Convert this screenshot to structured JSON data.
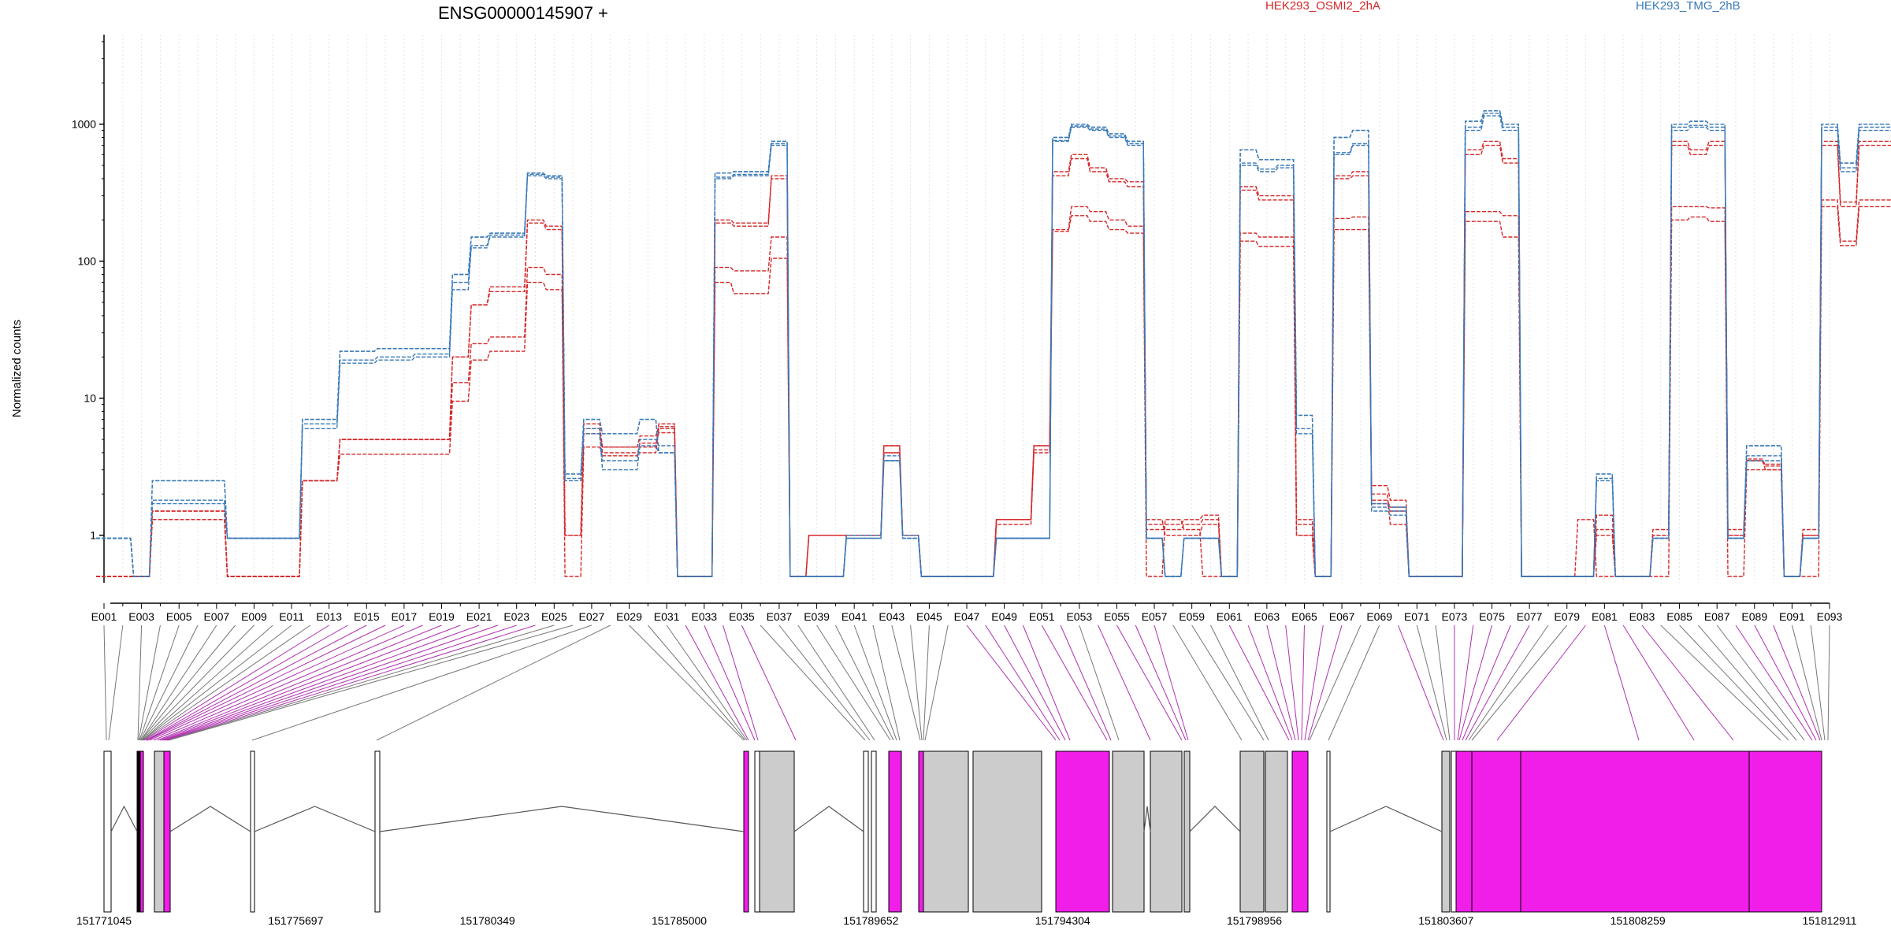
{
  "chart_data": {
    "type": "line",
    "title": "ENSG00000145907 +",
    "ylabel": "Normalized counts",
    "yscale": "log",
    "ylim": [
      0.45,
      4500
    ],
    "yticks": [
      1,
      10,
      100,
      1000
    ],
    "ytick_labels": [
      "1",
      "10",
      "100",
      "1000"
    ],
    "grid": "vertical dotted lines at each exon bin",
    "legend_position": "top",
    "colors": {
      "HEK293_OSMI2_2hA": "#d62728",
      "HEK293_TMG_2hB": "#3a7ab8",
      "intron_line": "#555555",
      "exon_gray": "#cccccc",
      "exon_magenta": "#f01ee8"
    },
    "exon_labels_shown": [
      "E001",
      "E003",
      "E005",
      "E007",
      "E009",
      "E011",
      "E013",
      "E015",
      "E017",
      "E019",
      "E021",
      "E023",
      "E025",
      "E027",
      "E029",
      "E031",
      "E033",
      "E035",
      "E037",
      "E039",
      "E041",
      "E043",
      "E045",
      "E047",
      "E049",
      "E051",
      "E053",
      "E055",
      "E057",
      "E059",
      "E061",
      "E063",
      "E065",
      "E067",
      "E069",
      "E071",
      "E073",
      "E075",
      "E077",
      "E079",
      "E081",
      "E083",
      "E085",
      "E087",
      "E089",
      "E091",
      "E093"
    ],
    "genomic_axis_labels": [
      "151771045",
      "151775697",
      "151780349",
      "151785000",
      "151789652",
      "151794304",
      "151798956",
      "151803607",
      "151808259",
      "151812911"
    ],
    "genomic_range": [
      151771045,
      151812911
    ],
    "series": [
      {
        "name": "HEK293_OSMI2_2hA",
        "group": "HEK293_OSMI2_2hA",
        "values": [
          0.5,
          0.5,
          0.5,
          1.3,
          1.3,
          1.3,
          1.3,
          0.5,
          0.5,
          0.5,
          0.5,
          2.5,
          2.5,
          3.9,
          3.9,
          3.9,
          3.9,
          3.9,
          3.9,
          9.5,
          19,
          22,
          22,
          70,
          62,
          0.5,
          4.4,
          3.8,
          3.8,
          4.7,
          5.6,
          0.5,
          0.5,
          70,
          58,
          58,
          105,
          0.5,
          0.5,
          0.5,
          1.0,
          1.0,
          4.0,
          1.0,
          0.5,
          0.5,
          0.5,
          0.5,
          1.3,
          1.3,
          4.2,
          165,
          215,
          195,
          170,
          160,
          0.5,
          1.3,
          1.1,
          0.5,
          0.5,
          140,
          128,
          128,
          1.0,
          0.5,
          170,
          170,
          2.0,
          1.2,
          0.5,
          0.5,
          0.5,
          195,
          195,
          150,
          0.5,
          0.5,
          0.5,
          1.3,
          0.5,
          0.5,
          0.5,
          0.5,
          200,
          210,
          195,
          0.5,
          3.0,
          3.0,
          0.5,
          0.5,
          250,
          130,
          250,
          250,
          165,
          0.5
        ]
      },
      {
        "name": "HEK293_OSMI2_2hA",
        "group": "HEK293_OSMI2_2hA",
        "values": [
          0.5,
          0.5,
          0.5,
          1.5,
          1.5,
          1.5,
          1.5,
          0.5,
          0.5,
          0.5,
          0.5,
          2.5,
          2.5,
          5,
          5,
          5,
          5,
          5,
          5,
          13,
          25,
          28,
          28,
          90,
          80,
          1.0,
          5.5,
          4.4,
          4.4,
          5.3,
          6.2,
          0.5,
          0.5,
          90,
          85,
          85,
          150,
          0.5,
          1.0,
          1.0,
          1.0,
          1.0,
          4.0,
          1.0,
          0.5,
          0.5,
          0.5,
          0.5,
          1.2,
          1.2,
          4.0,
          170,
          250,
          230,
          200,
          180,
          1.3,
          1.0,
          1.0,
          1.2,
          0.5,
          160,
          150,
          150,
          1.3,
          0.5,
          205,
          210,
          2.3,
          1.8,
          0.5,
          0.5,
          0.5,
          230,
          230,
          215,
          0.5,
          0.5,
          0.5,
          0.5,
          1.4,
          0.5,
          0.5,
          1.0,
          250,
          250,
          245,
          1.0,
          3.5,
          3.3,
          0.5,
          1.0,
          280,
          140,
          280,
          280,
          180,
          1.0
        ]
      },
      {
        "name": "HEK293_OSMI2_2hA",
        "group": "HEK293_OSMI2_2hA",
        "values": [
          0.5,
          0.5,
          0.5,
          1.3,
          1.3,
          1.3,
          1.3,
          0.5,
          0.5,
          0.5,
          0.5,
          2.5,
          2.5,
          5,
          5,
          5,
          5,
          5,
          5,
          20,
          48,
          60,
          60,
          190,
          170,
          1.0,
          6.0,
          4.0,
          4.0,
          4.0,
          6.0,
          0.5,
          0.5,
          190,
          180,
          180,
          400,
          0.5,
          1.0,
          1.0,
          1.0,
          1.0,
          4.5,
          1.0,
          0.5,
          0.5,
          0.5,
          0.5,
          1.3,
          1.3,
          4.5,
          420,
          560,
          450,
          380,
          350,
          1.1,
          1.1,
          1.2,
          1.3,
          0.5,
          330,
          280,
          280,
          1.0,
          0.5,
          400,
          420,
          1.7,
          1.5,
          0.5,
          0.5,
          0.5,
          600,
          700,
          520,
          0.5,
          0.5,
          0.5,
          0.5,
          1.0,
          0.5,
          0.5,
          1.0,
          700,
          600,
          700,
          1.0,
          3.5,
          3.0,
          0.5,
          1.0,
          700,
          250,
          700,
          700,
          520,
          1.2
        ]
      },
      {
        "name": "HEK293_OSMI2_2hA",
        "group": "HEK293_OSMI2_2hA",
        "values": [
          0.5,
          0.5,
          0.5,
          1.5,
          1.5,
          1.5,
          1.5,
          0.5,
          0.5,
          0.5,
          0.5,
          2.5,
          2.5,
          5,
          5,
          5,
          5,
          5,
          5,
          20,
          48,
          65,
          65,
          200,
          180,
          1.0,
          6.5,
          4.4,
          4.4,
          4.4,
          6.5,
          0.5,
          0.5,
          200,
          190,
          190,
          420,
          0.5,
          1.0,
          1.0,
          1.0,
          1.0,
          4.5,
          1.0,
          0.5,
          0.5,
          0.5,
          0.5,
          1.3,
          1.3,
          4.5,
          450,
          600,
          480,
          400,
          380,
          1.2,
          1.2,
          1.3,
          1.4,
          0.5,
          350,
          300,
          300,
          1.2,
          0.5,
          420,
          450,
          1.8,
          1.6,
          0.5,
          0.5,
          0.5,
          650,
          750,
          560,
          0.5,
          0.5,
          0.5,
          0.5,
          1.1,
          0.5,
          0.5,
          1.1,
          750,
          650,
          750,
          1.1,
          3.6,
          3.2,
          0.5,
          1.1,
          750,
          270,
          750,
          750,
          560,
          1.4
        ]
      },
      {
        "name": "HEK293_TMG_2hB",
        "group": "HEK293_TMG_2hB",
        "values": [
          0.95,
          0.95,
          0.5,
          1.7,
          1.7,
          1.7,
          1.7,
          0.95,
          0.95,
          0.95,
          0.95,
          6.0,
          6.0,
          18,
          18,
          19,
          19,
          20,
          20,
          62,
          125,
          150,
          150,
          420,
          400,
          2.5,
          5.5,
          3.0,
          3.0,
          4.5,
          4.0,
          0.5,
          0.5,
          400,
          420,
          420,
          700,
          0.5,
          0.5,
          0.5,
          0.95,
          0.95,
          3.5,
          0.95,
          0.5,
          0.5,
          0.5,
          0.5,
          0.95,
          0.95,
          0.95,
          750,
          950,
          900,
          800,
          700,
          0.95,
          0.5,
          0.95,
          0.95,
          0.5,
          500,
          450,
          480,
          5.5,
          0.5,
          600,
          700,
          1.5,
          1.4,
          0.5,
          0.5,
          0.5,
          900,
          1150,
          900,
          0.5,
          0.5,
          0.5,
          0.5,
          2.5,
          0.5,
          0.5,
          0.95,
          900,
          950,
          900,
          0.95,
          3.5,
          3.5,
          0.5,
          0.95,
          900,
          450,
          900,
          900,
          480,
          0.5
        ]
      },
      {
        "name": "HEK293_TMG_2hB",
        "group": "HEK293_TMG_2hB",
        "values": [
          0.95,
          0.95,
          0.5,
          1.8,
          1.8,
          1.8,
          1.8,
          0.95,
          0.95,
          0.95,
          0.95,
          6.5,
          6.5,
          19,
          19,
          20,
          20,
          21,
          21,
          70,
          130,
          155,
          155,
          430,
          410,
          2.6,
          6.0,
          3.5,
          3.5,
          5.0,
          4.5,
          0.5,
          0.5,
          410,
          430,
          430,
          720,
          0.5,
          0.5,
          0.5,
          0.95,
          0.95,
          3.8,
          0.95,
          0.5,
          0.5,
          0.5,
          0.5,
          0.95,
          0.95,
          0.95,
          760,
          970,
          920,
          820,
          720,
          0.95,
          0.5,
          0.95,
          0.95,
          0.5,
          520,
          470,
          500,
          6.0,
          0.5,
          620,
          720,
          1.6,
          1.5,
          0.5,
          0.5,
          0.5,
          950,
          1200,
          950,
          0.5,
          0.5,
          0.5,
          0.5,
          2.6,
          0.5,
          0.5,
          0.95,
          950,
          980,
          950,
          0.95,
          3.8,
          3.8,
          0.5,
          0.95,
          950,
          480,
          950,
          950,
          500,
          0.5
        ]
      },
      {
        "name": "HEK293_TMG_2hB",
        "group": "HEK293_TMG_2hB",
        "values": [
          0.95,
          0.95,
          0.5,
          2.5,
          2.5,
          2.5,
          2.5,
          0.95,
          0.95,
          0.95,
          0.95,
          7.0,
          7.0,
          22,
          22,
          23,
          23,
          23,
          23,
          80,
          150,
          160,
          160,
          440,
          420,
          2.8,
          7.0,
          5.5,
          5.5,
          7.0,
          4.0,
          0.5,
          0.5,
          440,
          450,
          450,
          750,
          0.5,
          0.5,
          0.5,
          1.0,
          1.0,
          3.5,
          1.0,
          0.5,
          0.5,
          0.5,
          0.5,
          0.95,
          0.95,
          0.95,
          800,
          1000,
          950,
          850,
          750,
          0.95,
          0.5,
          0.95,
          0.95,
          0.5,
          650,
          550,
          550,
          7.5,
          0.5,
          800,
          900,
          1.7,
          1.6,
          0.5,
          0.5,
          0.5,
          1050,
          1250,
          1000,
          0.5,
          0.5,
          0.5,
          0.5,
          2.8,
          0.5,
          0.5,
          0.95,
          1000,
          1050,
          1000,
          0.95,
          4.5,
          4.5,
          0.5,
          0.95,
          1000,
          520,
          1000,
          1000,
          550,
          0.5
        ]
      },
      {
        "name": "HEK293_TMG_2hB",
        "group": "HEK293_TMG_2hB",
        "values": [
          0.95,
          0.95,
          0.5,
          2.5,
          2.5,
          2.5,
          2.5,
          0.95,
          0.95,
          0.95,
          0.95,
          7.0,
          7.0,
          22,
          22,
          23,
          23,
          23,
          23,
          80,
          150,
          160,
          160,
          440,
          420,
          2.8,
          7.0,
          5.5,
          5.5,
          7.0,
          4.0,
          0.5,
          0.5,
          440,
          450,
          450,
          750,
          0.5,
          0.5,
          0.5,
          1.0,
          1.0,
          3.5,
          1.0,
          0.5,
          0.5,
          0.5,
          0.5,
          0.95,
          0.95,
          0.95,
          800,
          1000,
          950,
          850,
          750,
          0.95,
          0.5,
          0.95,
          0.95,
          0.5,
          650,
          550,
          550,
          7.5,
          0.5,
          800,
          900,
          1.7,
          1.6,
          0.5,
          0.5,
          0.5,
          1050,
          1250,
          1000,
          0.5,
          0.5,
          0.5,
          0.5,
          2.8,
          0.5,
          0.5,
          0.95,
          1000,
          1050,
          1000,
          0.95,
          4.5,
          4.5,
          0.5,
          0.95,
          1000,
          520,
          1000,
          1000,
          550,
          0.5
        ]
      }
    ]
  }
}
